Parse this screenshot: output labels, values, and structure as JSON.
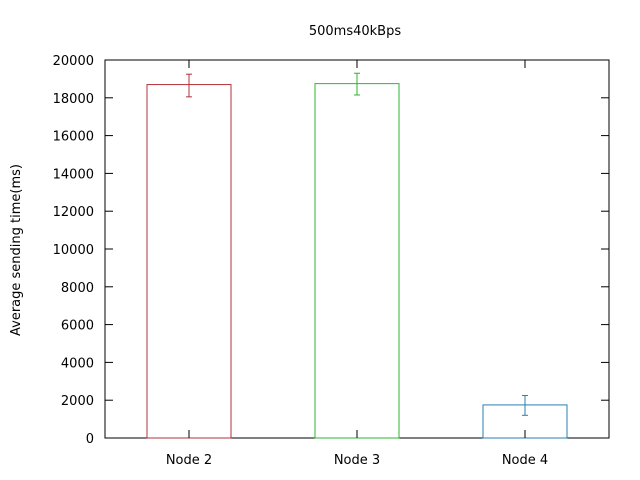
{
  "chart_data": {
    "type": "bar",
    "title": "500ms40kBps",
    "xlabel": "",
    "ylabel": "Average sending time(ms)",
    "categories": [
      "Node 2",
      "Node 3",
      "Node 4"
    ],
    "values": [
      18700,
      18750,
      1750
    ],
    "error_low": [
      18050,
      18150,
      1200
    ],
    "error_high": [
      19250,
      19300,
      2250
    ],
    "colors": [
      "#b3313b",
      "#2fb52f",
      "#2a7fb3"
    ],
    "ylim": [
      0,
      20000
    ],
    "yticks": [
      0,
      2000,
      4000,
      6000,
      8000,
      10000,
      12000,
      14000,
      16000,
      18000,
      20000
    ],
    "grid": false,
    "legend": "none"
  }
}
